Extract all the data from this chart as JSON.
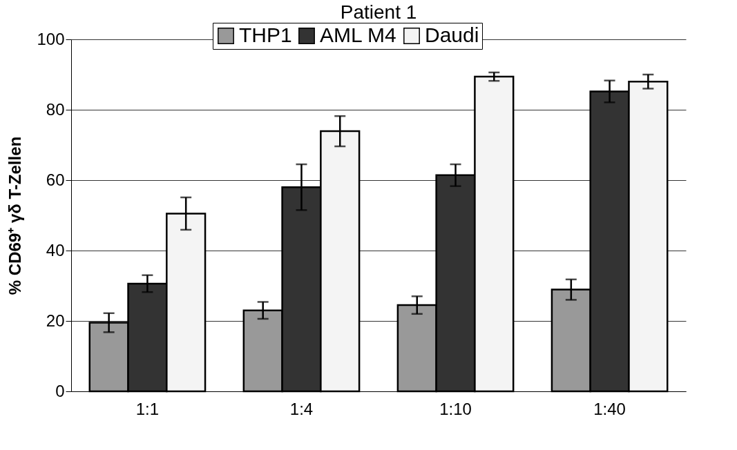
{
  "chart_data": {
    "type": "bar",
    "title": "Patient 1",
    "ylabel": "% CD69⁺ γδ T-Zellen",
    "categories": [
      "1:1",
      "1:4",
      "1:10",
      "1:40"
    ],
    "series": [
      {
        "name": "THP1",
        "color": "#999999",
        "values": [
          19.5,
          23.0,
          24.5,
          28.9
        ],
        "errors": [
          2.7,
          2.4,
          2.5,
          2.9
        ]
      },
      {
        "name": "AML M4",
        "color": "#333333",
        "values": [
          30.6,
          58.0,
          61.4,
          85.2
        ],
        "errors": [
          2.4,
          6.5,
          3.1,
          3.1
        ]
      },
      {
        "name": "Daudi",
        "color": "#f4f4f4",
        "values": [
          50.5,
          73.9,
          89.4,
          88.0
        ],
        "errors": [
          4.6,
          4.3,
          1.2,
          2.0
        ]
      }
    ],
    "ylim": [
      0,
      100
    ],
    "yticks": [
      0,
      20,
      40,
      60,
      80,
      100
    ],
    "grid": "y",
    "legend": "top"
  }
}
